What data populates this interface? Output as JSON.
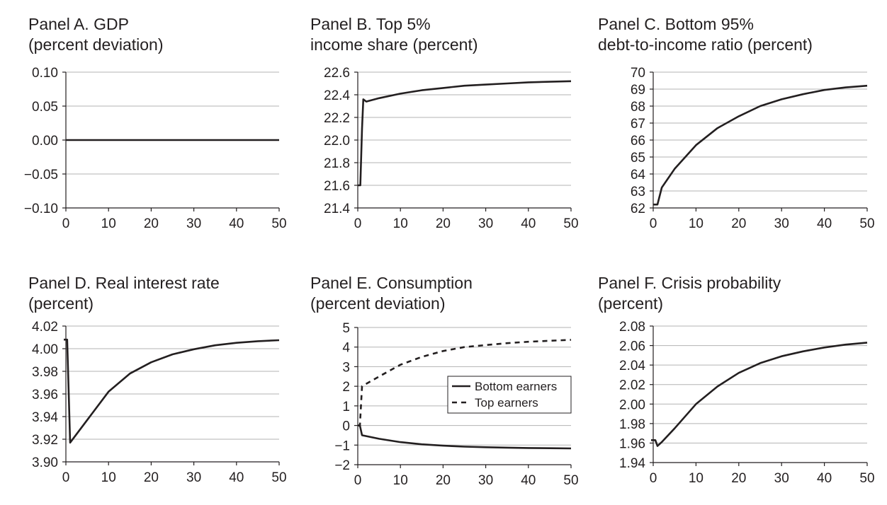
{
  "chart_data": [
    {
      "panel": "A",
      "type": "line",
      "title": "Panel A. GDP",
      "subtitle": "(percent deviation)",
      "ylim": [
        -0.1,
        0.1
      ],
      "yticks": [
        -0.1,
        -0.05,
        0.0,
        0.05,
        0.1
      ],
      "ytick_labels": [
        "−0.10",
        "−0.05",
        "0.00",
        "0.05",
        "0.10"
      ],
      "xlim": [
        0,
        50
      ],
      "xticks": [
        0,
        10,
        20,
        30,
        40,
        50
      ],
      "xtick_labels": [
        "0",
        "10",
        "20",
        "30",
        "40",
        "50"
      ],
      "grid": true,
      "series": [
        {
          "x": [
            0,
            50
          ],
          "y": [
            0.0,
            0.0
          ],
          "dash": "solid"
        }
      ]
    },
    {
      "panel": "B",
      "type": "line",
      "title": "Panel B. Top 5%",
      "subtitle": "income share (percent)",
      "ylim": [
        21.4,
        22.6
      ],
      "yticks": [
        21.4,
        21.6,
        21.8,
        22.0,
        22.2,
        22.4,
        22.6
      ],
      "ytick_labels": [
        "21.4",
        "21.6",
        "21.8",
        "22.0",
        "22.2",
        "22.4",
        "22.6"
      ],
      "xlim": [
        0,
        50
      ],
      "xticks": [
        0,
        10,
        20,
        30,
        40,
        50
      ],
      "xtick_labels": [
        "0",
        "10",
        "20",
        "30",
        "40",
        "50"
      ],
      "grid": true,
      "series": [
        {
          "x": [
            0,
            0.6,
            1,
            1.3,
            2,
            5,
            10,
            15,
            20,
            25,
            30,
            35,
            40,
            45,
            50
          ],
          "y": [
            21.6,
            21.6,
            22.1,
            22.36,
            22.34,
            22.37,
            22.41,
            22.44,
            22.46,
            22.48,
            22.49,
            22.5,
            22.51,
            22.515,
            22.52
          ],
          "dash": "solid"
        }
      ]
    },
    {
      "panel": "C",
      "type": "line",
      "title": "Panel C. Bottom 95%",
      "subtitle": "debt-to-income ratio (percent)",
      "ylim": [
        62,
        70
      ],
      "yticks": [
        62,
        63,
        64,
        65,
        66,
        67,
        68,
        69,
        70
      ],
      "ytick_labels": [
        "62",
        "63",
        "64",
        "65",
        "66",
        "67",
        "68",
        "69",
        "70"
      ],
      "xlim": [
        0,
        50
      ],
      "xticks": [
        0,
        10,
        20,
        30,
        40,
        50
      ],
      "xtick_labels": [
        "0",
        "10",
        "20",
        "30",
        "40",
        "50"
      ],
      "grid": true,
      "series": [
        {
          "x": [
            0,
            1,
            2,
            5,
            10,
            15,
            20,
            25,
            30,
            35,
            40,
            45,
            50
          ],
          "y": [
            62.2,
            62.2,
            63.2,
            64.3,
            65.7,
            66.7,
            67.4,
            68.0,
            68.4,
            68.7,
            68.95,
            69.1,
            69.2
          ],
          "dash": "solid"
        }
      ]
    },
    {
      "panel": "D",
      "type": "line",
      "title": "Panel D. Real interest rate",
      "subtitle": "(percent)",
      "ylim": [
        3.9,
        4.02
      ],
      "yticks": [
        3.9,
        3.92,
        3.94,
        3.96,
        3.98,
        4.0,
        4.02
      ],
      "ytick_labels": [
        "3.90",
        "3.92",
        "3.94",
        "3.96",
        "3.98",
        "4.00",
        "4.02"
      ],
      "xlim": [
        0,
        50
      ],
      "xticks": [
        0,
        10,
        20,
        30,
        40,
        50
      ],
      "xtick_labels": [
        "0",
        "10",
        "20",
        "30",
        "40",
        "50"
      ],
      "grid": true,
      "series": [
        {
          "x": [
            -0.5,
            0.3,
            1,
            5,
            10,
            15,
            20,
            25,
            30,
            35,
            40,
            45,
            50
          ],
          "y": [
            4.008,
            4.008,
            3.917,
            3.937,
            3.962,
            3.978,
            3.988,
            3.995,
            3.9995,
            4.003,
            4.0052,
            4.0066,
            4.0075
          ],
          "dash": "solid"
        }
      ]
    },
    {
      "panel": "E",
      "type": "line",
      "title": "Panel E. Consumption",
      "subtitle": "(percent deviation)",
      "ylim": [
        -2,
        5
      ],
      "yticks": [
        -2,
        -1,
        0,
        1,
        2,
        3,
        4,
        5
      ],
      "ytick_labels": [
        "−2",
        "−1",
        "0",
        "1",
        "2",
        "3",
        "4",
        "5"
      ],
      "xlim": [
        0,
        50
      ],
      "xticks": [
        0,
        10,
        20,
        30,
        40,
        50
      ],
      "xtick_labels": [
        "0",
        "10",
        "20",
        "30",
        "40",
        "50"
      ],
      "grid": true,
      "legend": {
        "position": "center-right",
        "entries": [
          "Bottom earners",
          "Top earners"
        ]
      },
      "series": [
        {
          "name": "Bottom earners",
          "x": [
            0,
            0.5,
            1,
            5,
            10,
            15,
            20,
            25,
            30,
            35,
            40,
            45,
            50
          ],
          "y": [
            0,
            0,
            -0.5,
            -0.68,
            -0.85,
            -0.96,
            -1.03,
            -1.08,
            -1.11,
            -1.13,
            -1.15,
            -1.16,
            -1.17
          ],
          "dash": "solid"
        },
        {
          "name": "Top earners",
          "x": [
            0,
            0.5,
            1,
            5,
            10,
            15,
            20,
            25,
            30,
            35,
            40,
            45,
            50
          ],
          "y": [
            0,
            0,
            2.0,
            2.5,
            3.1,
            3.5,
            3.8,
            4.0,
            4.1,
            4.2,
            4.27,
            4.32,
            4.37
          ],
          "dash": "dashed"
        }
      ]
    },
    {
      "panel": "F",
      "type": "line",
      "title": "Panel F. Crisis probability",
      "subtitle": "(percent)",
      "ylim": [
        1.94,
        2.08
      ],
      "yticks": [
        1.94,
        1.96,
        1.98,
        2.0,
        2.02,
        2.04,
        2.06,
        2.08
      ],
      "ytick_labels": [
        "1.94",
        "1.96",
        "1.98",
        "2.00",
        "2.02",
        "2.04",
        "2.06",
        "2.08"
      ],
      "xlim": [
        0,
        50
      ],
      "xticks": [
        0,
        10,
        20,
        30,
        40,
        50
      ],
      "xtick_labels": [
        "0",
        "10",
        "20",
        "30",
        "40",
        "50"
      ],
      "grid": true,
      "series": [
        {
          "x": [
            -0.5,
            0.5,
            1,
            2,
            5,
            10,
            15,
            20,
            25,
            30,
            35,
            40,
            45,
            50
          ],
          "y": [
            1.963,
            1.963,
            1.957,
            1.961,
            1.975,
            2.0,
            2.018,
            2.032,
            2.042,
            2.049,
            2.054,
            2.058,
            2.061,
            2.063
          ],
          "dash": "solid"
        }
      ]
    }
  ]
}
